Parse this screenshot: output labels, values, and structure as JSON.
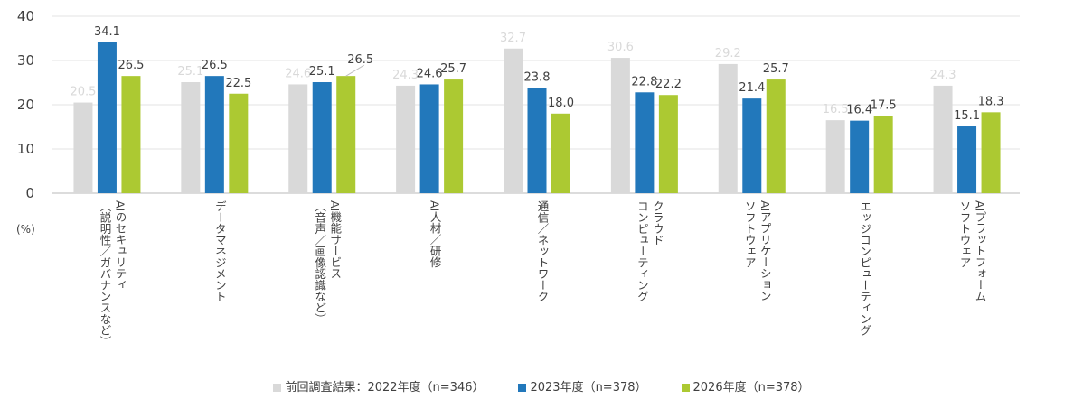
{
  "chart_data": {
    "type": "bar",
    "title": "",
    "xlabel": "",
    "ylabel": "(%)",
    "ylim": [
      0,
      40
    ],
    "yticks": [
      0,
      10,
      20,
      30,
      40
    ],
    "grid": true,
    "legend_position": "bottom",
    "categories": [
      "AIのセキュリティ\n（説明性／ガバナンスなど）",
      "データマネジメント",
      "AI機能サービス\n（音声／画像認識など）",
      "AI人材／研修",
      "通信／ネットワーク",
      "クラウド\nコンピューティング",
      "AIアプリケーション\nソフトウェア",
      "エッジコンピューティング",
      "AIプラットフォーム\nソフトウェア"
    ],
    "series": [
      {
        "name": "前回調査結果：2022年度（n=346）",
        "color": "#d9d9d9",
        "label_color": "#d9d9d9",
        "values": [
          20.5,
          25.1,
          24.6,
          24.3,
          32.7,
          30.6,
          29.2,
          16.5,
          24.3
        ]
      },
      {
        "name": "2023年度（n=378）",
        "color": "#2278bb",
        "label_color": "#404040",
        "values": [
          34.1,
          26.5,
          25.1,
          24.6,
          23.8,
          22.8,
          21.4,
          16.4,
          15.1
        ]
      },
      {
        "name": "2026年度（n=378）",
        "color": "#acc932",
        "label_color": "#404040",
        "values": [
          26.5,
          22.5,
          26.5,
          25.7,
          18.0,
          22.2,
          25.7,
          17.5,
          18.3
        ]
      }
    ]
  },
  "legend": [
    {
      "label": "前回調査結果：2022年度（n=346）",
      "color": "#d9d9d9"
    },
    {
      "label": "2023年度（n=378）",
      "color": "#2278bb"
    },
    {
      "label": "2026年度（n=378）",
      "color": "#acc932"
    }
  ],
  "unit_label": "(%)"
}
